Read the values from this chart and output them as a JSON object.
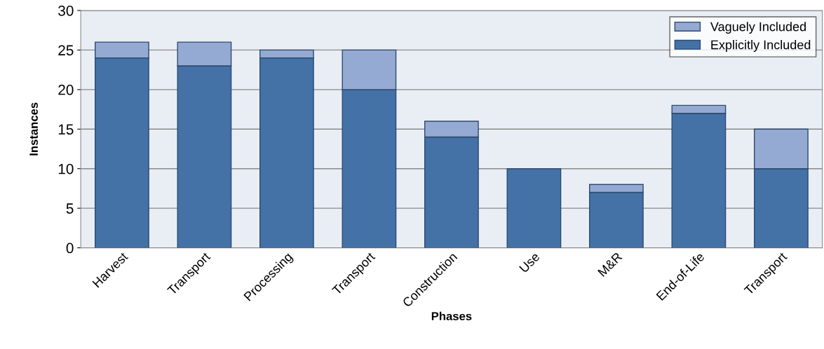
{
  "chart_data": {
    "type": "bar",
    "stacked": true,
    "xlabel": "Phases",
    "ylabel": "Instances",
    "categories": [
      "Harvest",
      "Transport",
      "Processing",
      "Transport",
      "Construction",
      "Use",
      "M&R",
      "End-of-Life",
      "Transport"
    ],
    "series": [
      {
        "name": "Explicitly Included",
        "color": "#4472a6",
        "values": [
          24,
          23,
          24,
          20,
          14,
          10,
          7,
          17,
          10
        ]
      },
      {
        "name": "Vaguely Included",
        "color": "#95aad3",
        "values": [
          2,
          3,
          1,
          5,
          2,
          0,
          1,
          1,
          5
        ]
      }
    ],
    "ylim": [
      0,
      30
    ],
    "yticks": [
      0,
      5,
      10,
      15,
      20,
      25,
      30
    ],
    "grid": "y",
    "legend": "top right"
  }
}
